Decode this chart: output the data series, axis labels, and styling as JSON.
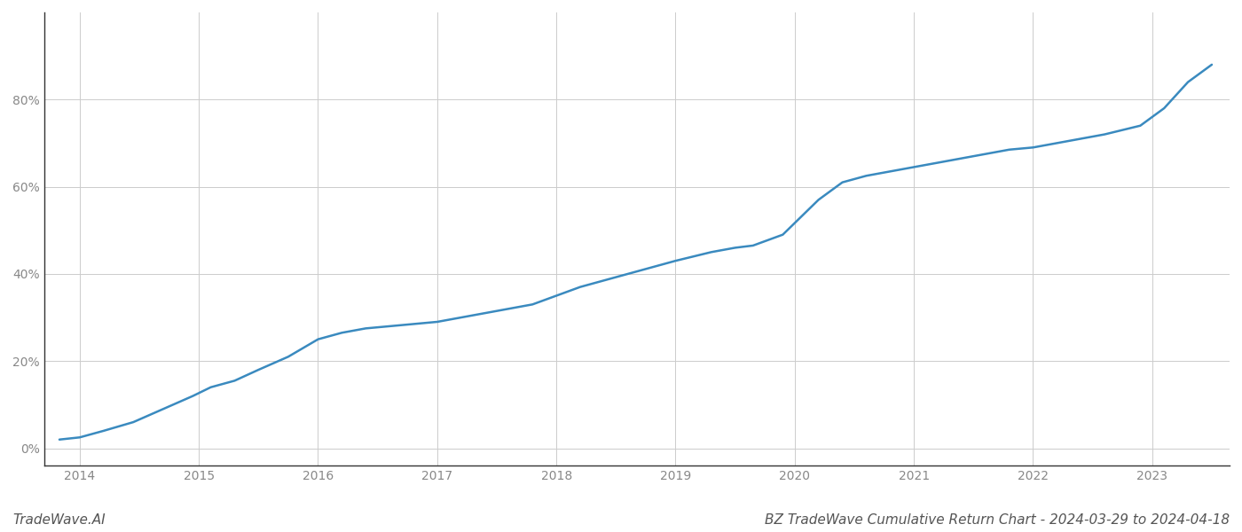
{
  "x_values": [
    2013.83,
    2014.0,
    2014.2,
    2014.45,
    2014.7,
    2014.95,
    2015.1,
    2015.3,
    2015.5,
    2015.75,
    2016.0,
    2016.2,
    2016.4,
    2016.6,
    2016.8,
    2017.0,
    2017.2,
    2017.4,
    2017.6,
    2017.8,
    2018.0,
    2018.2,
    2018.4,
    2018.6,
    2018.8,
    2019.0,
    2019.15,
    2019.3,
    2019.5,
    2019.65,
    2019.75,
    2019.9,
    2020.05,
    2020.2,
    2020.4,
    2020.6,
    2020.8,
    2021.0,
    2021.2,
    2021.4,
    2021.6,
    2021.8,
    2022.0,
    2022.2,
    2022.4,
    2022.6,
    2022.75,
    2022.9,
    2023.1,
    2023.3,
    2023.5
  ],
  "y_values": [
    2,
    2.5,
    4,
    6,
    9,
    12,
    14,
    15.5,
    18,
    21,
    25,
    26.5,
    27.5,
    28,
    28.5,
    29,
    30,
    31,
    32,
    33,
    35,
    37,
    38.5,
    40,
    41.5,
    43,
    44,
    45,
    46,
    46.5,
    47.5,
    49,
    53,
    57,
    61,
    62.5,
    63.5,
    64.5,
    65.5,
    66.5,
    67.5,
    68.5,
    69,
    70,
    71,
    72,
    73,
    74,
    78,
    84,
    88
  ],
  "line_color": "#3a8abf",
  "line_width": 1.8,
  "background_color": "#ffffff",
  "grid_color": "#cccccc",
  "title": "BZ TradeWave Cumulative Return Chart - 2024-03-29 to 2024-04-18",
  "title_fontsize": 11,
  "title_color": "#555555",
  "watermark": "TradeWave.AI",
  "watermark_fontsize": 11,
  "watermark_color": "#555555",
  "xtick_labels": [
    "2014",
    "2015",
    "2016",
    "2017",
    "2018",
    "2019",
    "2020",
    "2021",
    "2022",
    "2023"
  ],
  "xtick_values": [
    2014,
    2015,
    2016,
    2017,
    2018,
    2019,
    2020,
    2021,
    2022,
    2023
  ],
  "ytick_values": [
    0,
    20,
    40,
    60,
    80
  ],
  "xlim": [
    2013.7,
    2023.65
  ],
  "ylim": [
    -4,
    100
  ]
}
